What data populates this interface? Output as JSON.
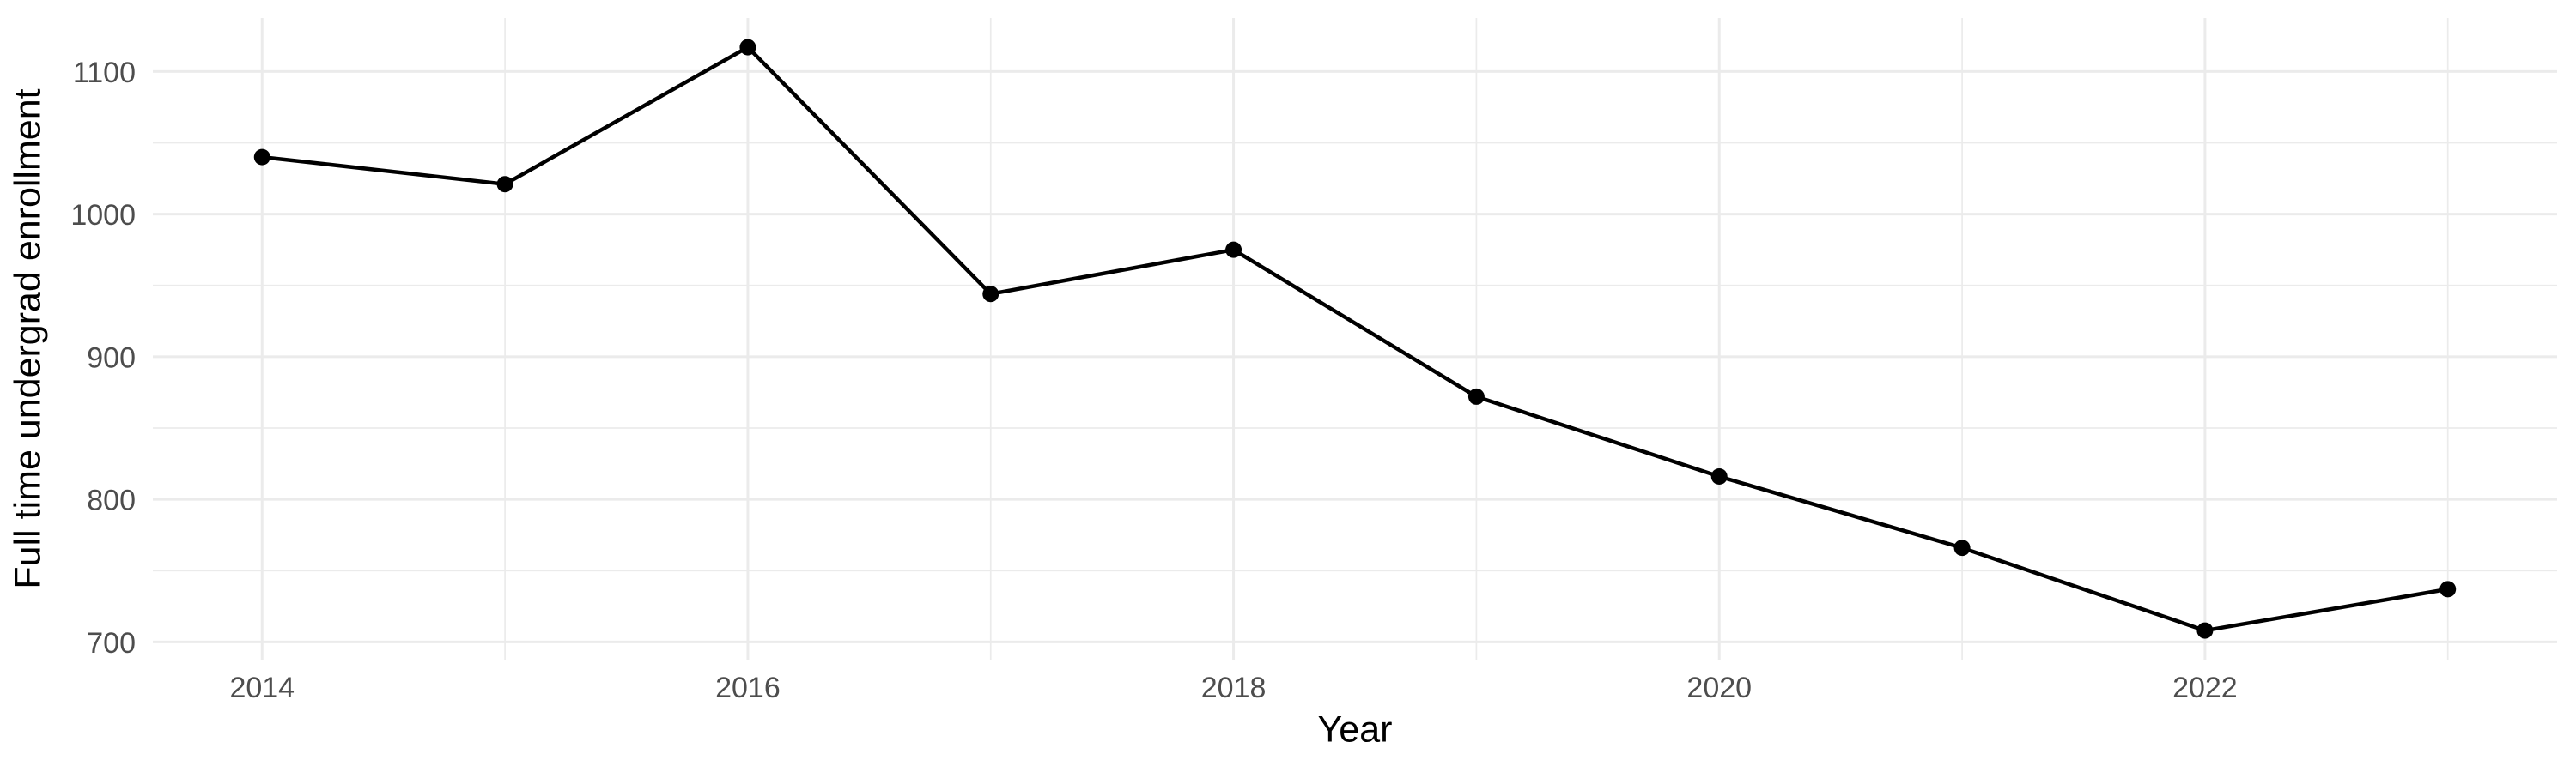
{
  "figure": {
    "background": "#FFFFFF"
  },
  "chart_data": {
    "type": "line",
    "title": "",
    "xlabel": "Year",
    "ylabel": "Full time undergrad enrollment",
    "x": [
      2014,
      2015,
      2016,
      2017,
      2018,
      2019,
      2020,
      2021,
      2022,
      2023
    ],
    "values": [
      1040,
      1021,
      1117,
      944,
      975,
      872,
      816,
      766,
      708,
      737
    ],
    "x_ticks_major": [
      2014,
      2016,
      2018,
      2020,
      2022
    ],
    "x_ticks_minor": [
      2015,
      2017,
      2019,
      2021,
      2023
    ],
    "y_ticks_major": [
      700,
      800,
      900,
      1000,
      1100
    ],
    "y_ticks_minor": [
      750,
      850,
      950,
      1050
    ],
    "xlim": [
      2013.55,
      2023.45
    ],
    "ylim": [
      687,
      1137.5
    ],
    "grid": "major-and-minor",
    "legend": "none",
    "colors": {
      "line": "#000000",
      "point": "#000000",
      "grid": "#EBEBEB",
      "tick_text": "#4D4D4D",
      "axis_title": "#000000",
      "panel_background": "#FFFFFF"
    }
  }
}
